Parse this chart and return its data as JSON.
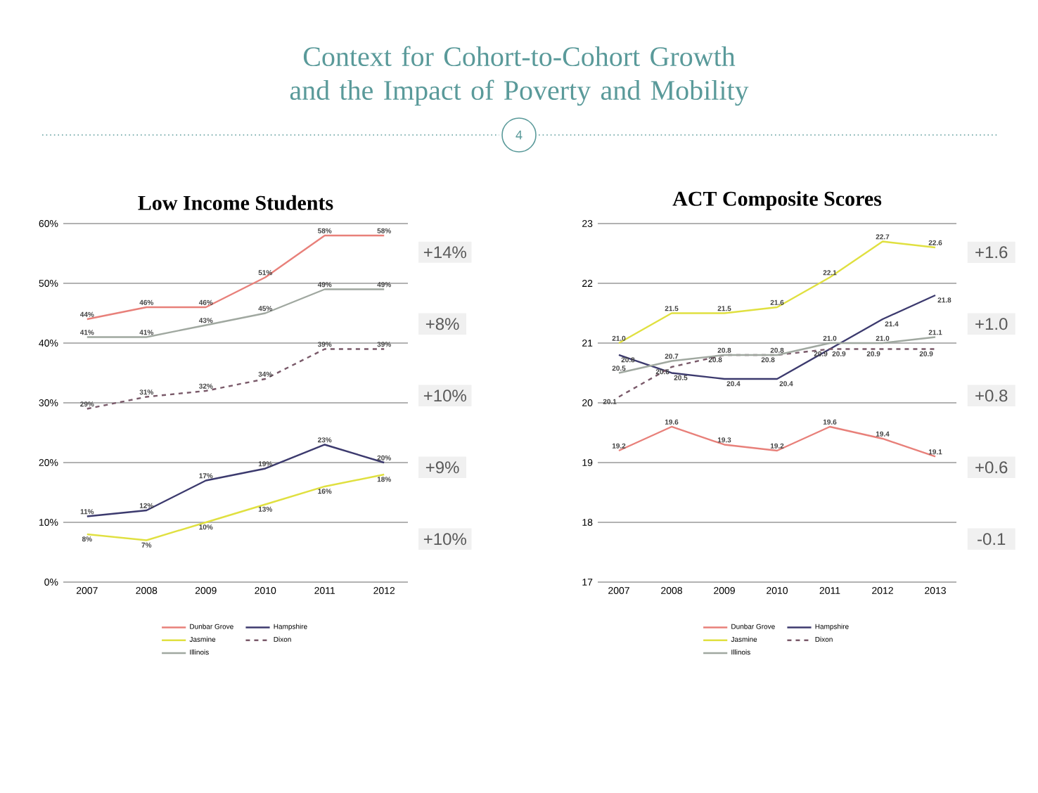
{
  "chart_data": [
    {
      "type": "line",
      "title": "Low Income Students",
      "categories": [
        "2007",
        "2008",
        "2009",
        "2010",
        "2011",
        "2012"
      ],
      "ylim": [
        0,
        60
      ],
      "yticks": [
        {
          "value": 0,
          "label": "0%"
        },
        {
          "value": 10,
          "label": "10%"
        },
        {
          "value": 20,
          "label": "20%"
        },
        {
          "value": 30,
          "label": "30%"
        },
        {
          "value": 40,
          "label": "40%"
        },
        {
          "value": 50,
          "label": "50%"
        },
        {
          "value": 60,
          "label": "60%"
        }
      ],
      "grid": "y",
      "legend": "bottom",
      "marker": "none",
      "annotations": [
        "Context for Cohort-to-Cohort Growth and the Impact of Poverty and Mobility",
        "4",
        "+14%",
        "+8%",
        "+10%",
        "+9%",
        "+10%"
      ],
      "series": [
        {
          "name": "Dunbar Grove",
          "color": "#e8807a",
          "values": [
            44,
            46,
            46,
            51,
            58,
            58
          ],
          "value_labels": [
            "44%",
            "46%",
            "46%",
            "51%",
            "58%",
            "58%"
          ]
        },
        {
          "name": "Hampshire",
          "color": "#3c3a6e",
          "values": [
            11,
            12,
            17,
            19,
            23,
            20
          ],
          "value_labels": [
            "11%",
            "12%",
            "17%",
            "19%",
            "23%",
            "20%"
          ]
        },
        {
          "name": "Jasmine",
          "color": "#e0e040",
          "values": [
            8,
            7,
            10,
            13,
            16,
            18
          ],
          "value_labels": [
            "8%",
            "7%",
            "10%",
            "13%",
            "16%",
            "18%"
          ]
        },
        {
          "name": "Dixon",
          "color": "#7a5a6a",
          "line_style": "dashed",
          "values": [
            29,
            31,
            32,
            34,
            39,
            39
          ],
          "value_labels": [
            "29%",
            "31%",
            "32%",
            "34%",
            "39%",
            "39%"
          ]
        },
        {
          "name": "Illinois",
          "color": "#a0a8a0",
          "values": [
            41,
            41,
            43,
            45,
            49,
            49
          ],
          "value_labels": [
            "41%",
            "41%",
            "43%",
            "45%",
            "49%",
            "49%"
          ]
        }
      ]
    },
    {
      "type": "line",
      "title": "ACT Composite Scores",
      "categories": [
        "2007",
        "2008",
        "2009",
        "2010",
        "2011",
        "2012",
        "2013"
      ],
      "ylim": [
        17,
        23
      ],
      "yticks": [
        17,
        18,
        19,
        20,
        21,
        22,
        23
      ],
      "grid": "y",
      "legend": "bottom",
      "marker": "none",
      "annotations": [
        "+1.6",
        "+1.0",
        "+0.8",
        "+0.6",
        "-0.1"
      ],
      "series": [
        {
          "name": "Dunbar Grove",
          "color": "#e8807a",
          "values": [
            19.2,
            19.6,
            19.3,
            19.2,
            19.6,
            19.4,
            19.1
          ],
          "value_labels": [
            "19.2",
            "19.6",
            "19.3",
            "19.2",
            "19.6",
            "19.4",
            "19.1"
          ]
        },
        {
          "name": "Hampshire",
          "color": "#3c3a6e",
          "values": [
            20.8,
            20.5,
            20.4,
            20.4,
            20.9,
            21.4,
            21.8
          ],
          "value_labels": [
            "20.8",
            "20.5",
            "20.4",
            "20.4",
            "20.9",
            "21.4",
            "21.8"
          ]
        },
        {
          "name": "Jasmine",
          "color": "#e0e040",
          "values": [
            21.0,
            21.5,
            21.5,
            21.6,
            22.1,
            22.7,
            22.6
          ],
          "value_labels": [
            "21.0",
            "21.5",
            "21.5",
            "21.6",
            "22.1",
            "22.7",
            "22.6"
          ]
        },
        {
          "name": "Dixon",
          "color": "#7a5a6a",
          "line_style": "dashed",
          "values": [
            20.1,
            20.6,
            20.8,
            20.8,
            20.9,
            20.9,
            20.9
          ],
          "value_labels": [
            "20.1",
            "20.6",
            "20.8",
            "20.8",
            "20.9",
            "20.9",
            "20.9"
          ]
        },
        {
          "name": "Illinois",
          "color": "#a0a8a0",
          "values": [
            20.5,
            20.7,
            20.8,
            20.8,
            21.0,
            21.0,
            21.1
          ],
          "value_labels": [
            "20.5",
            "20.7",
            "20.8",
            "20.8",
            "21.0",
            "21.0",
            "21.1"
          ]
        }
      ]
    }
  ]
}
